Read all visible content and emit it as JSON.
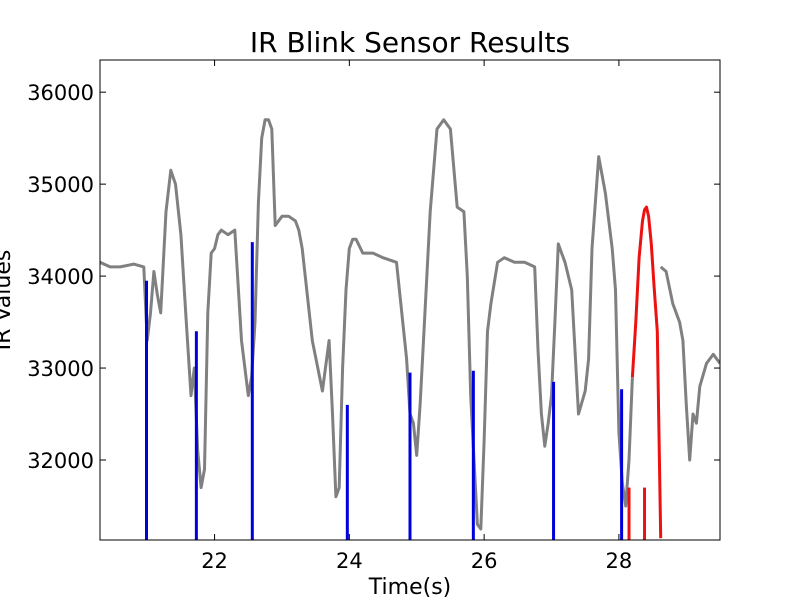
{
  "chart_data": {
    "type": "line",
    "title": "IR Blink Sensor Results",
    "xlabel": "Time(s)",
    "ylabel": "IR Values",
    "xlim": [
      20.3,
      29.5
    ],
    "ylim": [
      31130,
      36350
    ],
    "xticks": [
      22,
      24,
      26,
      28
    ],
    "yticks": [
      32000,
      33000,
      34000,
      35000,
      36000
    ],
    "grid": false,
    "colors": {
      "signal": "#808080",
      "blink_marker": "#0000dd",
      "current": "#ee1111"
    },
    "series": [
      {
        "color": "#808080",
        "x": [
          20.3,
          20.45,
          20.6,
          20.8,
          20.95,
          21.0,
          21.05,
          21.1,
          21.15,
          21.2,
          21.28,
          21.35,
          21.42,
          21.5,
          21.58,
          21.65,
          21.7,
          21.75,
          21.8,
          21.85,
          21.9,
          21.95,
          22.0,
          22.05,
          22.1,
          22.2,
          22.3,
          22.4,
          22.5,
          22.55,
          22.6,
          22.65,
          22.7,
          22.75,
          22.8,
          22.85,
          22.9,
          23.0,
          23.1,
          23.2,
          23.25,
          23.3,
          23.45,
          23.6,
          23.7,
          23.75,
          23.8,
          23.85,
          23.9,
          23.95,
          24.0,
          24.05,
          24.1,
          24.2,
          24.35,
          24.5,
          24.7,
          24.85,
          24.9,
          24.95,
          25.0,
          25.05,
          25.1,
          25.2,
          25.3,
          25.4,
          25.5,
          25.6,
          25.7,
          25.75,
          25.8,
          25.85,
          25.9,
          25.95,
          26.0,
          26.05,
          26.1,
          26.2,
          26.3,
          26.45,
          26.6,
          26.75,
          26.8,
          26.85,
          26.9,
          26.95,
          27.0,
          27.05,
          27.1,
          27.15,
          27.2,
          27.3,
          27.4,
          27.5,
          27.55,
          27.6,
          27.7,
          27.8,
          27.9,
          27.95,
          28.0,
          28.05,
          28.1,
          28.15,
          28.2
        ],
        "y": [
          34150,
          34100,
          34100,
          34130,
          34100,
          33300,
          33600,
          34050,
          33800,
          33600,
          34700,
          35150,
          35000,
          34450,
          33500,
          32700,
          33000,
          32100,
          31700,
          31900,
          33600,
          34250,
          34300,
          34450,
          34500,
          34450,
          34500,
          33300,
          32700,
          32900,
          33500,
          34800,
          35500,
          35700,
          35700,
          35600,
          34550,
          34650,
          34650,
          34600,
          34500,
          34300,
          33300,
          32750,
          33300,
          32500,
          31600,
          31700,
          33000,
          33850,
          34300,
          34400,
          34400,
          34250,
          34250,
          34200,
          34150,
          33100,
          32500,
          32400,
          32050,
          32600,
          33300,
          34700,
          35600,
          35700,
          35600,
          34750,
          34700,
          34000,
          32700,
          32000,
          31300,
          31250,
          32200,
          33400,
          33700,
          34150,
          34200,
          34150,
          34150,
          34100,
          33200,
          32500,
          32150,
          32400,
          32700,
          33500,
          34350,
          34250,
          34150,
          33850,
          32500,
          32750,
          33100,
          34300,
          35300,
          34900,
          34300,
          33850,
          32300,
          31750,
          31500,
          32000,
          32900
        ]
      },
      {
        "color": "#ee1111",
        "x": [
          28.2,
          28.25,
          28.3,
          28.35,
          28.38,
          28.41,
          28.44,
          28.48,
          28.52,
          28.57,
          28.62
        ],
        "y": [
          32900,
          33500,
          34200,
          34600,
          34720,
          34750,
          34650,
          34350,
          33900,
          33400,
          31150
        ]
      },
      {
        "color": "#808080",
        "x": [
          28.62,
          28.7,
          28.8,
          28.9,
          28.95,
          29.0,
          29.05,
          29.1,
          29.15,
          29.2,
          29.3,
          29.4,
          29.5
        ],
        "y": [
          34100,
          34050,
          33700,
          33500,
          33300,
          32600,
          32000,
          32500,
          32400,
          32800,
          33050,
          33150,
          33050
        ]
      }
    ],
    "markers": {
      "x": [
        20.99,
        21.73,
        22.56,
        23.97,
        24.9,
        25.84,
        27.03,
        28.04
      ],
      "y": [
        33950,
        33400,
        34370,
        32600,
        32950,
        32970,
        32850,
        32770
      ]
    },
    "current_window": {
      "x": [
        28.15,
        28.38
      ]
    }
  }
}
